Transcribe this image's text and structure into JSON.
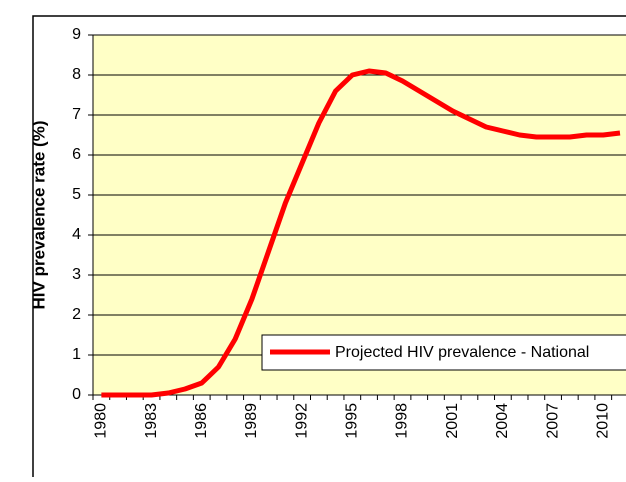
{
  "chart_data": {
    "type": "line",
    "ylabel": "HIV prevalence rate (%)",
    "categories": [
      "1980",
      null,
      null,
      "1983",
      null,
      null,
      "1986",
      null,
      null,
      "1989",
      null,
      null,
      "1992",
      null,
      null,
      "1995",
      null,
      null,
      "1998",
      null,
      null,
      "2001",
      null,
      null,
      "2004",
      null,
      null,
      "2007",
      null,
      null,
      "2010",
      null
    ],
    "series": [
      {
        "name": "Projected HIV prevalence - National",
        "color": "#ff0000",
        "values": [
          0,
          0,
          0,
          0,
          0.05,
          0.15,
          0.3,
          0.7,
          1.4,
          2.4,
          3.6,
          4.8,
          5.8,
          6.8,
          7.6,
          8.0,
          8.1,
          8.05,
          7.85,
          7.6,
          7.35,
          7.1,
          6.9,
          6.7,
          6.6,
          6.5,
          6.45,
          6.45,
          6.45,
          6.5,
          6.5,
          6.55
        ]
      }
    ],
    "ylim": [
      0,
      9
    ],
    "yticks": [
      0,
      1,
      2,
      3,
      4,
      5,
      6,
      7,
      8,
      9
    ],
    "grid": true,
    "legend": "lower right"
  }
}
